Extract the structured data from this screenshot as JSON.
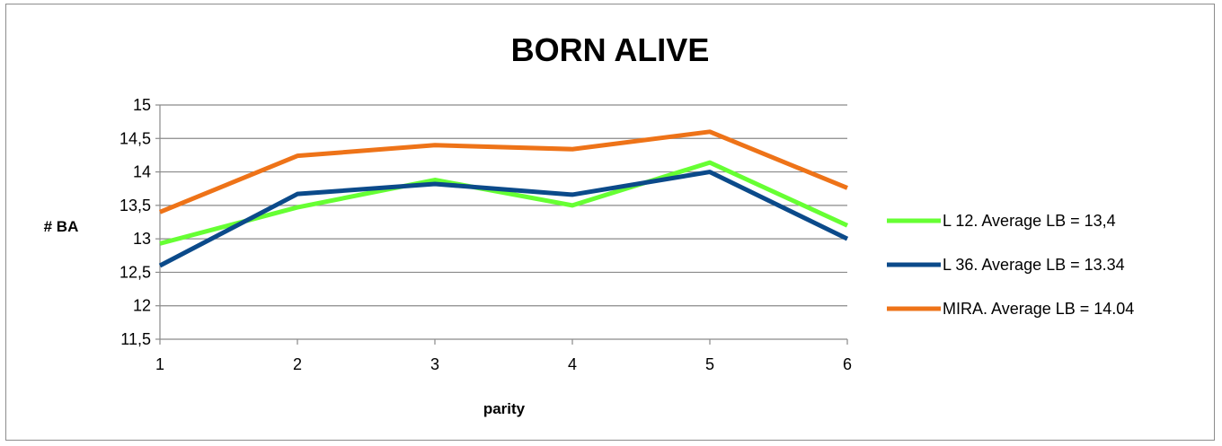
{
  "chart_data": {
    "type": "line",
    "title": "BORN ALIVE",
    "xlabel": "parity",
    "ylabel": "# BA",
    "x": [
      1,
      2,
      3,
      4,
      5,
      6
    ],
    "x_tick_labels": [
      "1",
      "2",
      "3",
      "4",
      "5",
      "6"
    ],
    "ylim": [
      11.5,
      15
    ],
    "y_ticks": [
      11.5,
      12,
      12.5,
      13,
      13.5,
      14,
      14.5,
      15
    ],
    "y_tick_labels": [
      "11,5",
      "12",
      "12,5",
      "13",
      "13,5",
      "14",
      "14,5",
      "15"
    ],
    "grid": "horizontal",
    "legend_position": "right",
    "series": [
      {
        "name": "L 12. Average LB = 13,4",
        "color": "#66ff33",
        "values": [
          12.93,
          13.47,
          13.88,
          13.5,
          14.14,
          13.2
        ]
      },
      {
        "name": "L 36. Average LB = 13.34",
        "color": "#0b4a8a",
        "values": [
          12.6,
          13.67,
          13.82,
          13.66,
          14.0,
          13.0
        ]
      },
      {
        "name": "MIRA. Average LB = 14.04",
        "color": "#ee7318",
        "values": [
          13.4,
          14.24,
          14.4,
          14.34,
          14.6,
          13.76
        ]
      }
    ]
  }
}
